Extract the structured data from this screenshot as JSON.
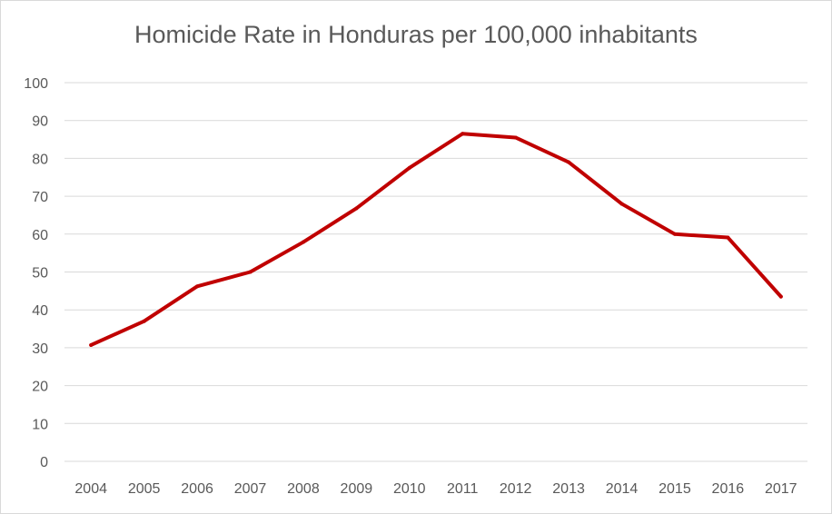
{
  "chart_data": {
    "type": "line",
    "title": "Homicide Rate in Honduras per 100,000 inhabitants",
    "xlabel": "",
    "ylabel": "",
    "categories": [
      "2004",
      "2005",
      "2006",
      "2007",
      "2008",
      "2009",
      "2010",
      "2011",
      "2012",
      "2013",
      "2014",
      "2015",
      "2016",
      "2017"
    ],
    "series": [
      {
        "values": [
          30.7,
          37.0,
          46.2,
          50.0,
          57.9,
          66.8,
          77.5,
          86.5,
          85.5,
          79.0,
          68.0,
          60.0,
          59.1,
          43.5
        ],
        "color": "#c00000"
      }
    ],
    "ylim": [
      0,
      100
    ],
    "yticks": [
      "0",
      "10",
      "20",
      "30",
      "40",
      "50",
      "60",
      "70",
      "80",
      "90",
      "100"
    ],
    "grid": "horizontal",
    "legend": "none"
  }
}
